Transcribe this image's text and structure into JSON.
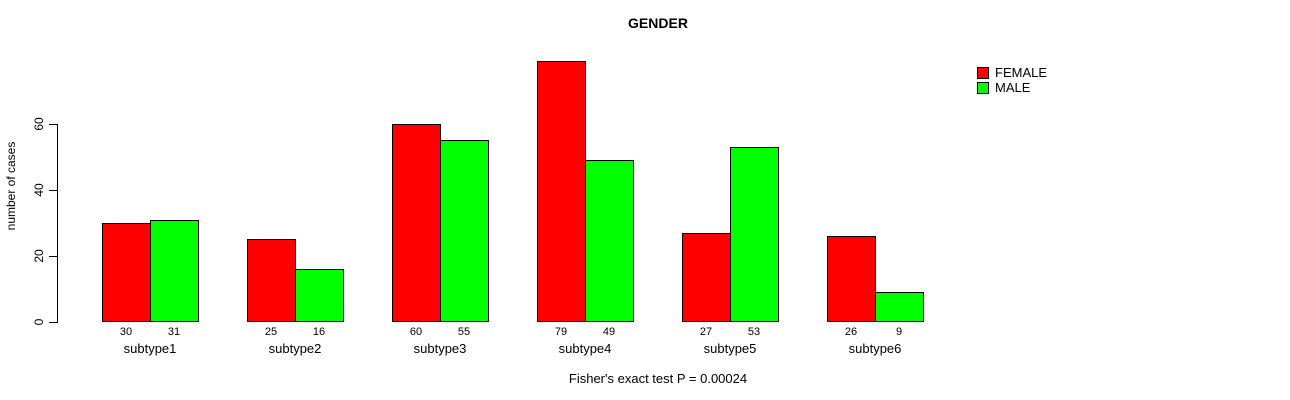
{
  "chart_data": {
    "type": "bar",
    "title": "GENDER",
    "categories": [
      "subtype1",
      "subtype2",
      "subtype3",
      "subtype4",
      "subtype5",
      "subtype6"
    ],
    "series": [
      {
        "name": "FEMALE",
        "color": "#ff0000",
        "values": [
          30,
          25,
          60,
          79,
          27,
          26
        ]
      },
      {
        "name": "MALE",
        "color": "#00ff00",
        "values": [
          31,
          16,
          55,
          49,
          53,
          9
        ]
      }
    ],
    "xlabel": "",
    "ylabel": "number of cases",
    "yticks": [
      0,
      20,
      40,
      60
    ],
    "ylim": [
      0,
      82
    ],
    "grid": false,
    "bar_value_labels_shown": true,
    "legend_position": "top-right",
    "annotation": "Fisher's exact test P = 0.00024",
    "background_color": "#ffffff",
    "axis_color": "#000000"
  }
}
